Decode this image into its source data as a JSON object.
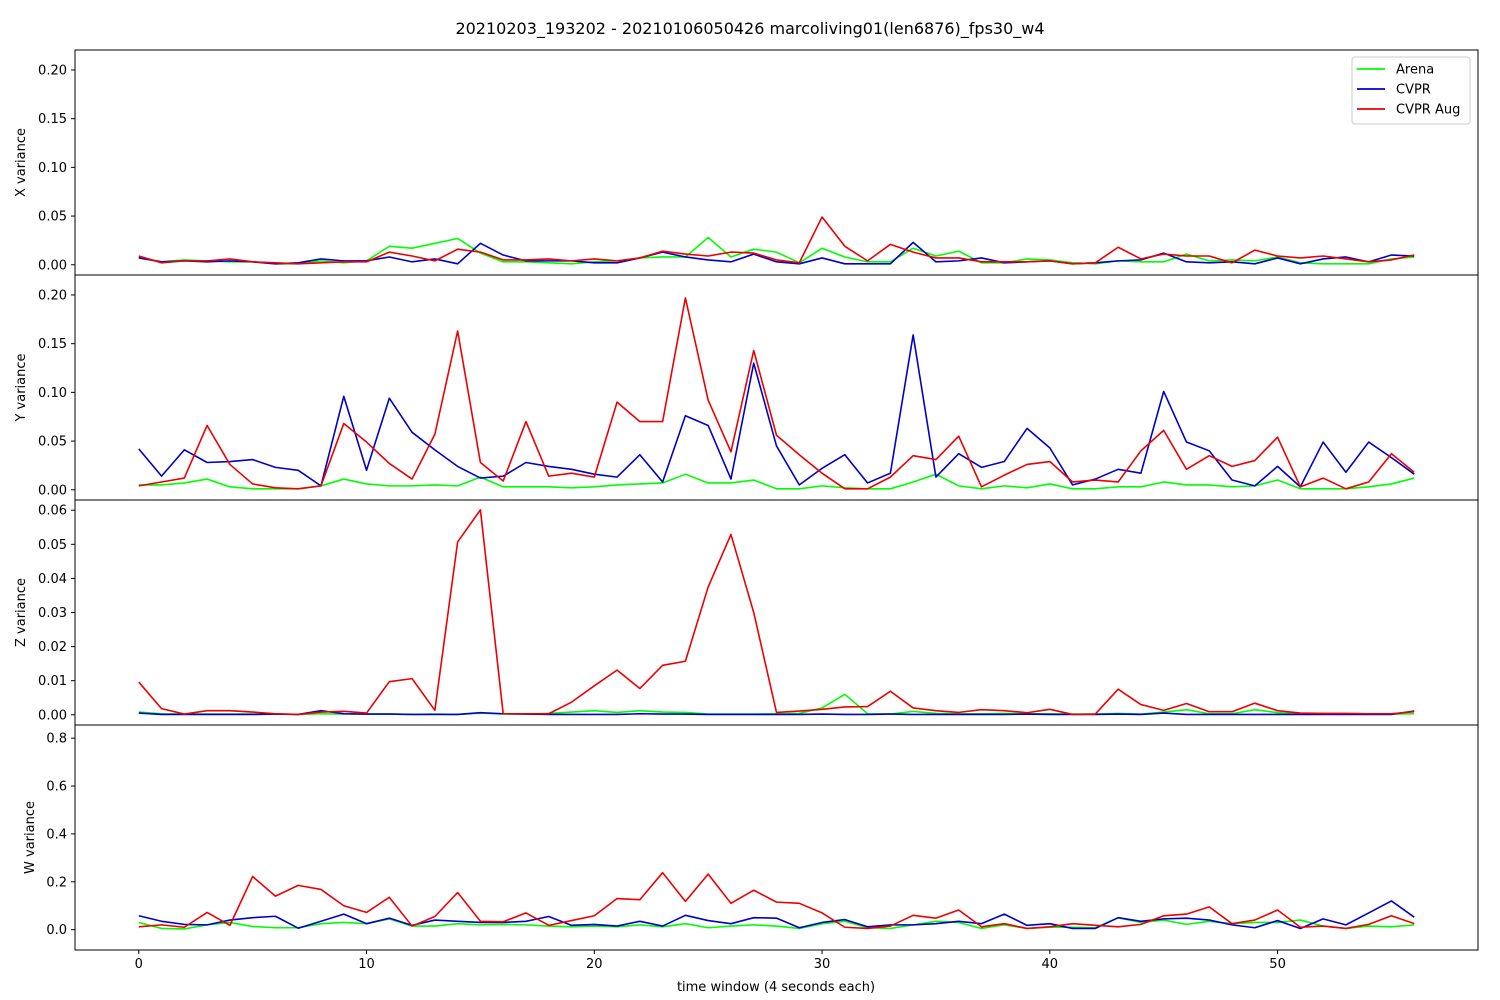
{
  "figure": {
    "title": "20210203_193202 - 20210106050426 marcoliving01(len6876)_fps30_w4",
    "xlabel": "time window (4 seconds each)"
  },
  "legend": {
    "placement": "top-right",
    "entries": [
      {
        "name": "Arena",
        "color": "#00ff00"
      },
      {
        "name": "CVPR",
        "color": "#0000cc"
      },
      {
        "name": "CVPR Aug",
        "color": "#ee0000"
      }
    ]
  },
  "chart_data": [
    {
      "type": "line",
      "ylabel": "X variance",
      "xlim": [
        -2.8,
        58.8
      ],
      "ylim": [
        -0.0105,
        0.2205
      ],
      "yticks": [
        "0.00",
        "0.05",
        "0.10",
        "0.15",
        "0.20"
      ],
      "xticks": [],
      "series": [
        {
          "name": "Arena",
          "color": "#00ff00",
          "values": [
            0.008,
            0.003,
            0.005,
            0.004,
            0.003,
            0.003,
            0.001,
            0.001,
            0.004,
            0.002,
            0.004,
            0.019,
            0.017,
            0.022,
            0.027,
            0.012,
            0.003,
            0.003,
            0.002,
            0.001,
            0.003,
            0.004,
            0.007,
            0.008,
            0.008,
            0.028,
            0.008,
            0.016,
            0.013,
            0.002,
            0.017,
            0.008,
            0.003,
            0.003,
            0.017,
            0.009,
            0.014,
            0.002,
            0.002,
            0.006,
            0.005,
            0.002,
            0.001,
            0.004,
            0.003,
            0.003,
            0.011,
            0.004,
            0.005,
            0.004,
            0.008,
            0.002,
            0.001,
            0.001,
            0.001,
            0.006,
            0.008
          ]
        },
        {
          "name": "CVPR",
          "color": "#0000cc",
          "values": [
            0.007,
            0.003,
            0.004,
            0.003,
            0.004,
            0.003,
            0.001,
            0.002,
            0.006,
            0.004,
            0.004,
            0.008,
            0.003,
            0.006,
            0.001,
            0.022,
            0.01,
            0.004,
            0.004,
            0.004,
            0.002,
            0.002,
            0.007,
            0.013,
            0.008,
            0.005,
            0.003,
            0.011,
            0.003,
            0.001,
            0.007,
            0.001,
            0.001,
            0.001,
            0.023,
            0.003,
            0.004,
            0.007,
            0.002,
            0.003,
            0.004,
            0.001,
            0.002,
            0.004,
            0.005,
            0.012,
            0.003,
            0.002,
            0.003,
            0.001,
            0.007,
            0.001,
            0.006,
            0.008,
            0.003,
            0.01,
            0.009
          ]
        },
        {
          "name": "CVPR Aug",
          "color": "#ee0000",
          "values": [
            0.009,
            0.002,
            0.004,
            0.004,
            0.006,
            0.003,
            0.002,
            0.001,
            0.002,
            0.003,
            0.003,
            0.013,
            0.009,
            0.004,
            0.016,
            0.013,
            0.005,
            0.005,
            0.006,
            0.004,
            0.006,
            0.004,
            0.007,
            0.014,
            0.011,
            0.009,
            0.013,
            0.012,
            0.005,
            0.002,
            0.049,
            0.019,
            0.004,
            0.021,
            0.013,
            0.007,
            0.007,
            0.003,
            0.003,
            0.003,
            0.004,
            0.001,
            0.002,
            0.018,
            0.006,
            0.011,
            0.009,
            0.009,
            0.002,
            0.015,
            0.009,
            0.007,
            0.009,
            0.006,
            0.003,
            0.005,
            0.01
          ]
        }
      ]
    },
    {
      "type": "line",
      "ylabel": "Y variance",
      "xlim": [
        -2.8,
        58.8
      ],
      "ylim": [
        -0.0105,
        0.2205
      ],
      "yticks": [
        "0.00",
        "0.05",
        "0.10",
        "0.15",
        "0.20"
      ],
      "xticks": [],
      "series": [
        {
          "name": "Arena",
          "color": "#00ff00",
          "values": [
            0.005,
            0.005,
            0.007,
            0.011,
            0.003,
            0.001,
            0.001,
            0.001,
            0.004,
            0.011,
            0.006,
            0.004,
            0.004,
            0.005,
            0.004,
            0.013,
            0.003,
            0.003,
            0.003,
            0.002,
            0.003,
            0.005,
            0.006,
            0.007,
            0.016,
            0.007,
            0.007,
            0.01,
            0.001,
            0.001,
            0.004,
            0.002,
            0.001,
            0.001,
            0.008,
            0.016,
            0.004,
            0.001,
            0.004,
            0.002,
            0.006,
            0.001,
            0.001,
            0.003,
            0.003,
            0.008,
            0.005,
            0.005,
            0.003,
            0.004,
            0.01,
            0.001,
            0.001,
            0.001,
            0.003,
            0.006,
            0.012
          ]
        },
        {
          "name": "CVPR",
          "color": "#0000cc",
          "values": [
            0.042,
            0.014,
            0.041,
            0.028,
            0.029,
            0.031,
            0.023,
            0.02,
            0.004,
            0.096,
            0.02,
            0.094,
            0.059,
            0.041,
            0.024,
            0.012,
            0.014,
            0.028,
            0.024,
            0.021,
            0.016,
            0.013,
            0.036,
            0.008,
            0.076,
            0.066,
            0.011,
            0.13,
            0.045,
            0.005,
            0.022,
            0.036,
            0.007,
            0.017,
            0.159,
            0.013,
            0.037,
            0.023,
            0.029,
            0.063,
            0.043,
            0.005,
            0.011,
            0.021,
            0.017,
            0.101,
            0.049,
            0.04,
            0.01,
            0.004,
            0.024,
            0.003,
            0.049,
            0.018,
            0.049,
            0.033,
            0.016
          ]
        },
        {
          "name": "CVPR Aug",
          "color": "#ee0000",
          "values": [
            0.004,
            0.008,
            0.012,
            0.066,
            0.026,
            0.006,
            0.002,
            0.001,
            0.004,
            0.068,
            0.049,
            0.027,
            0.011,
            0.057,
            0.163,
            0.028,
            0.009,
            0.07,
            0.014,
            0.017,
            0.013,
            0.09,
            0.07,
            0.07,
            0.197,
            0.092,
            0.039,
            0.143,
            0.056,
            0.036,
            0.017,
            0.001,
            0.001,
            0.013,
            0.035,
            0.031,
            0.055,
            0.003,
            0.015,
            0.026,
            0.029,
            0.008,
            0.01,
            0.008,
            0.04,
            0.061,
            0.021,
            0.035,
            0.024,
            0.03,
            0.054,
            0.003,
            0.012,
            0.001,
            0.008,
            0.037,
            0.018
          ]
        }
      ]
    },
    {
      "type": "line",
      "ylabel": "Z variance",
      "xlim": [
        -2.8,
        58.8
      ],
      "ylim": [
        -0.003,
        0.063
      ],
      "yticks": [
        "0.00",
        "0.01",
        "0.02",
        "0.03",
        "0.04",
        "0.05",
        "0.06"
      ],
      "xticks": [],
      "series": [
        {
          "name": "Arena",
          "color": "#00ff00",
          "values": [
            0.0008,
            0.0003,
            0.0002,
            0.0002,
            0.0002,
            0.0002,
            0.0002,
            0.0001,
            0.0003,
            0.0002,
            0.0002,
            0.0002,
            0.0001,
            0.0002,
            0.0001,
            0.0005,
            0.0002,
            0.0002,
            0.0004,
            0.0008,
            0.0012,
            0.0007,
            0.0012,
            0.0008,
            0.0007,
            0.0002,
            0.0002,
            0.0002,
            0.0003,
            0.0004,
            0.002,
            0.006,
            0.0003,
            0.0002,
            0.001,
            0.0004,
            0.0003,
            0.0003,
            0.0004,
            0.0003,
            0.0003,
            0.0002,
            0.0002,
            0.0004,
            0.0002,
            0.0008,
            0.0015,
            0.0003,
            0.0003,
            0.0015,
            0.0006,
            0.0003,
            0.0004,
            0.0002,
            0.0002,
            0.0002,
            0.0003
          ]
        },
        {
          "name": "CVPR",
          "color": "#0000cc",
          "values": [
            0.0005,
            0.0001,
            0.0001,
            0.0001,
            0.0001,
            0.0001,
            0.0002,
            0.0001,
            0.0012,
            0.0003,
            0.0002,
            0.0002,
            0.0001,
            0.0001,
            0.0001,
            0.0006,
            0.0003,
            0.0002,
            0.0001,
            0.0001,
            0.0001,
            0.0001,
            0.0003,
            0.0002,
            0.0002,
            0.0001,
            0.0001,
            0.0001,
            0.0001,
            0.0001,
            0.0002,
            0.0001,
            0.0001,
            0.0002,
            0.0001,
            0.0001,
            0.0001,
            0.0001,
            0.0001,
            0.0002,
            0.0001,
            0.0001,
            0.0001,
            0.0002,
            0.0001,
            0.0005,
            0.0001,
            0.0001,
            0.0001,
            0.0001,
            0.0001,
            0.0001,
            0.0001,
            0.0001,
            0.0001,
            0.0001,
            0.0011
          ]
        },
        {
          "name": "CVPR Aug",
          "color": "#ee0000",
          "values": [
            0.0096,
            0.0018,
            0.0002,
            0.0012,
            0.0012,
            0.0008,
            0.0003,
            0.0001,
            0.0008,
            0.001,
            0.0005,
            0.0097,
            0.0106,
            0.0013,
            0.0507,
            0.0601,
            0.0003,
            0.0003,
            0.0003,
            0.0037,
            0.0085,
            0.0131,
            0.0077,
            0.0145,
            0.0157,
            0.0375,
            0.0529,
            0.03,
            0.0007,
            0.0011,
            0.0016,
            0.0023,
            0.0024,
            0.0069,
            0.002,
            0.0012,
            0.0007,
            0.0015,
            0.0012,
            0.0006,
            0.0016,
            0.0001,
            0.0002,
            0.0075,
            0.003,
            0.0013,
            0.0033,
            0.0009,
            0.0009,
            0.0034,
            0.0012,
            0.0005,
            0.0004,
            0.0004,
            0.0003,
            0.0003,
            0.0009
          ]
        }
      ]
    },
    {
      "type": "line",
      "ylabel": "W variance",
      "xlim": [
        -2.8,
        58.8
      ],
      "ylim": [
        -0.085,
        0.855
      ],
      "yticks": [
        "0.0",
        "0.2",
        "0.4",
        "0.6",
        "0.8"
      ],
      "xticks": [
        "0",
        "10",
        "20",
        "30",
        "40",
        "50"
      ],
      "series": [
        {
          "name": "Arena",
          "color": "#00ff00",
          "values": [
            0.03,
            0.005,
            0.003,
            0.02,
            0.03,
            0.013,
            0.008,
            0.008,
            0.025,
            0.03,
            0.025,
            0.045,
            0.015,
            0.015,
            0.025,
            0.02,
            0.022,
            0.02,
            0.015,
            0.012,
            0.015,
            0.012,
            0.02,
            0.012,
            0.025,
            0.008,
            0.015,
            0.02,
            0.015,
            0.005,
            0.025,
            0.035,
            0.008,
            0.005,
            0.02,
            0.035,
            0.03,
            0.005,
            0.02,
            0.005,
            0.01,
            0.01,
            0.008,
            0.05,
            0.03,
            0.04,
            0.022,
            0.035,
            0.025,
            0.03,
            0.03,
            0.04,
            0.015,
            0.005,
            0.015,
            0.012,
            0.02
          ]
        },
        {
          "name": "CVPR",
          "color": "#0000cc",
          "values": [
            0.058,
            0.035,
            0.022,
            0.02,
            0.04,
            0.05,
            0.056,
            0.006,
            0.035,
            0.065,
            0.025,
            0.048,
            0.018,
            0.04,
            0.035,
            0.03,
            0.03,
            0.035,
            0.055,
            0.018,
            0.022,
            0.015,
            0.035,
            0.015,
            0.06,
            0.038,
            0.025,
            0.05,
            0.048,
            0.008,
            0.03,
            0.042,
            0.012,
            0.02,
            0.02,
            0.025,
            0.035,
            0.025,
            0.065,
            0.018,
            0.025,
            0.005,
            0.005,
            0.05,
            0.035,
            0.045,
            0.048,
            0.04,
            0.02,
            0.008,
            0.038,
            0.005,
            0.045,
            0.02,
            0.07,
            0.12,
            0.052
          ]
        },
        {
          "name": "CVPR Aug",
          "color": "#ee0000",
          "values": [
            0.012,
            0.02,
            0.01,
            0.072,
            0.018,
            0.222,
            0.14,
            0.185,
            0.168,
            0.1,
            0.072,
            0.135,
            0.015,
            0.055,
            0.155,
            0.035,
            0.033,
            0.07,
            0.018,
            0.038,
            0.058,
            0.13,
            0.125,
            0.238,
            0.118,
            0.232,
            0.11,
            0.165,
            0.115,
            0.11,
            0.07,
            0.01,
            0.005,
            0.015,
            0.06,
            0.048,
            0.082,
            0.012,
            0.025,
            0.005,
            0.012,
            0.025,
            0.018,
            0.012,
            0.022,
            0.058,
            0.065,
            0.095,
            0.025,
            0.04,
            0.082,
            0.01,
            0.015,
            0.005,
            0.022,
            0.058,
            0.025
          ]
        }
      ]
    }
  ]
}
